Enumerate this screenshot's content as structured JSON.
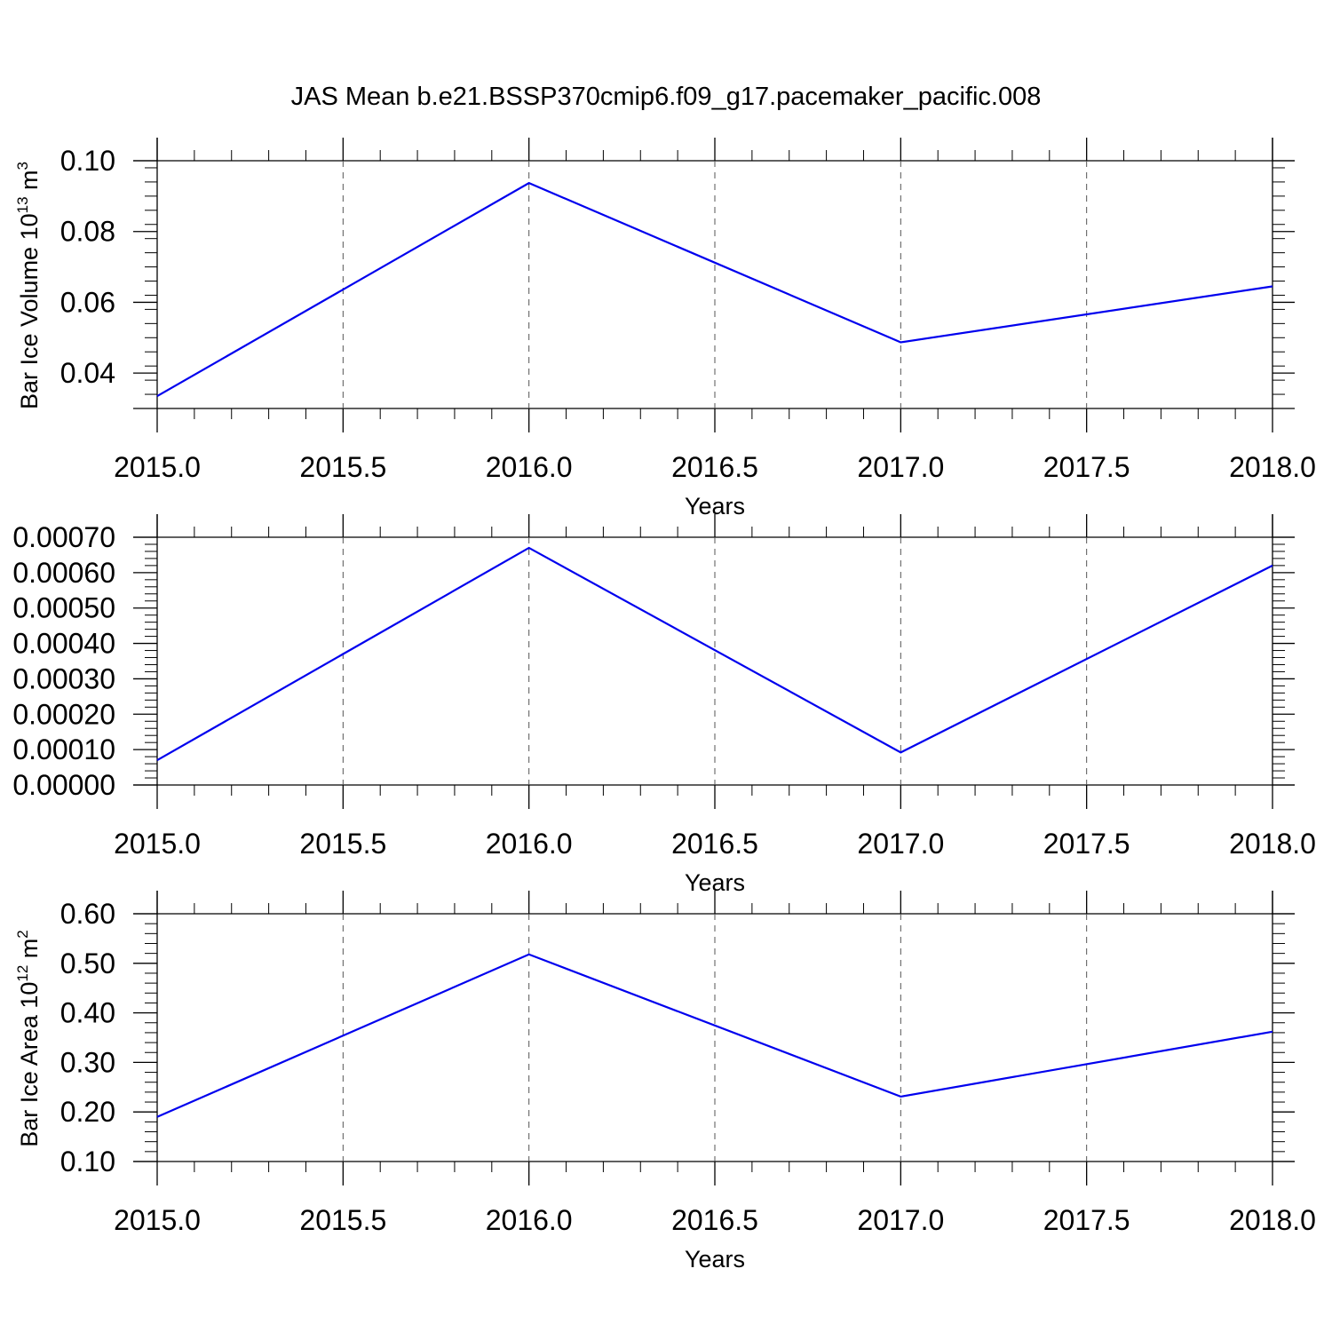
{
  "title": "JAS Mean b.e21.BSSP370cmip6.f09_g17.pacemaker_pacific.008",
  "chart_data": [
    {
      "type": "line",
      "xlabel": "Years",
      "ylabel": {
        "text": "Bar Ice Volume 10",
        "exponent": "13",
        "unit": " m",
        "unit_exponent": "3"
      },
      "xlim": [
        2015.0,
        2018.0
      ],
      "ylim": [
        0.03,
        0.1
      ],
      "x_ticks": [
        "2015.0",
        "2015.5",
        "2016.0",
        "2016.5",
        "2017.0",
        "2017.5",
        "2018.0"
      ],
      "y_ticks": [
        "0.04",
        "0.06",
        "0.08",
        "0.10"
      ],
      "y_tick_values": [
        0.04,
        0.06,
        0.08,
        0.1
      ],
      "grid": "x dashed",
      "line_color": "#0000ee",
      "series": [
        {
          "x": [
            2015,
            2016,
            2017,
            2018
          ],
          "values": [
            0.0335,
            0.0937,
            0.0487,
            0.0645
          ]
        }
      ]
    },
    {
      "type": "line",
      "xlabel": "Years",
      "ylabel": null,
      "xlim": [
        2015.0,
        2018.0
      ],
      "ylim": [
        0.0,
        0.0007
      ],
      "x_ticks": [
        "2015.0",
        "2015.5",
        "2016.0",
        "2016.5",
        "2017.0",
        "2017.5",
        "2018.0"
      ],
      "y_ticks": [
        "0.00000",
        "0.00010",
        "0.00020",
        "0.00030",
        "0.00040",
        "0.00050",
        "0.00060",
        "0.00070"
      ],
      "y_tick_values": [
        0.0,
        0.0001,
        0.0002,
        0.0003,
        0.0004,
        0.0005,
        0.0006,
        0.0007
      ],
      "grid": "x dashed",
      "line_color": "#0000ee",
      "series": [
        {
          "x": [
            2015,
            2016,
            2017,
            2018
          ],
          "values": [
            7e-05,
            0.00067,
            9.2e-05,
            0.00062
          ]
        }
      ]
    },
    {
      "type": "line",
      "xlabel": "Years",
      "ylabel": {
        "text": "Bar Ice Area 10",
        "exponent": "12",
        "unit": " m",
        "unit_exponent": "2"
      },
      "xlim": [
        2015.0,
        2018.0
      ],
      "ylim": [
        0.1,
        0.6
      ],
      "x_ticks": [
        "2015.0",
        "2015.5",
        "2016.0",
        "2016.5",
        "2017.0",
        "2017.5",
        "2018.0"
      ],
      "y_ticks": [
        "0.10",
        "0.20",
        "0.30",
        "0.40",
        "0.50",
        "0.60"
      ],
      "y_tick_values": [
        0.1,
        0.2,
        0.3,
        0.4,
        0.5,
        0.6
      ],
      "grid": "x dashed",
      "line_color": "#0000ee",
      "series": [
        {
          "x": [
            2015,
            2016,
            2017,
            2018
          ],
          "values": [
            0.19,
            0.518,
            0.231,
            0.362
          ]
        }
      ]
    }
  ]
}
